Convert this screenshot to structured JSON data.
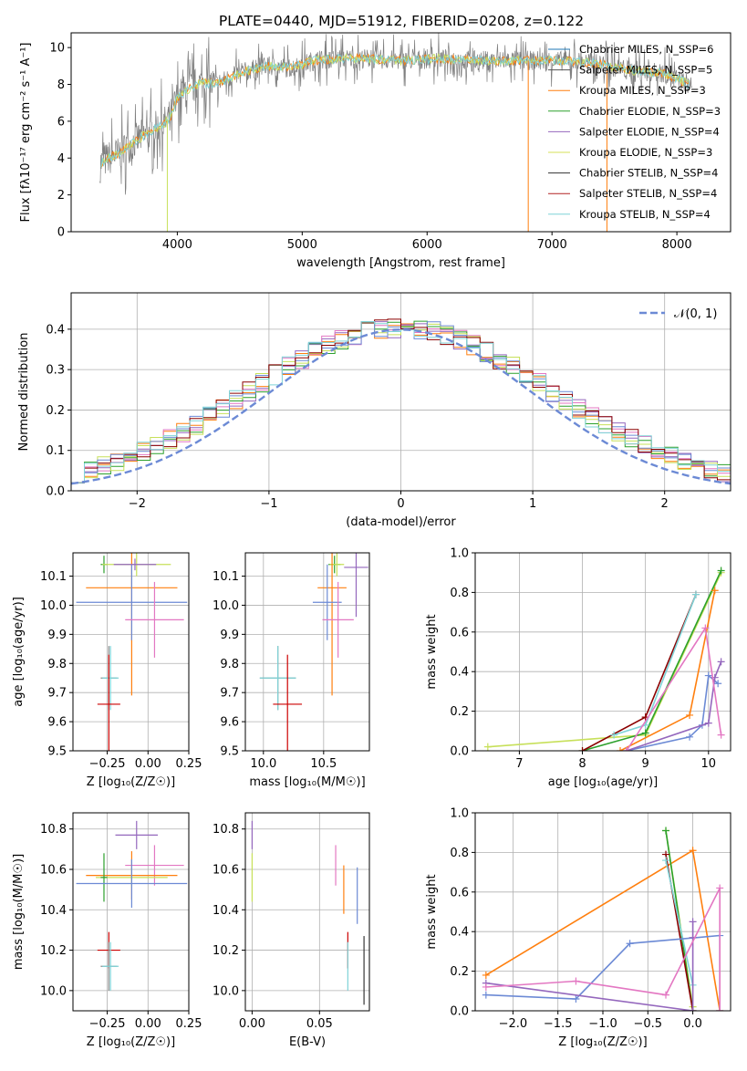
{
  "figure": {
    "title": "PLATE=0440, MJD=51912, FIBERID=0208, z=0.122",
    "series_colors": [
      "#ff7f0e",
      "#6a3d9a",
      "#e377c2",
      "#6c8ad5",
      "#9467bd",
      "#c7e05a",
      "#2ca02c",
      "#8b0000",
      "#7fd3d7",
      "#595959",
      "#da3c28",
      "#d4e157"
    ]
  },
  "chart_data": [
    {
      "id": "spectrum",
      "type": "line",
      "xlabel": "wavelength [Angstrom, rest frame]",
      "ylabel": "Flux [fλ10⁻¹⁷ erg cm⁻² s⁻¹ A⁻¹]",
      "xlim": [
        3150,
        8430
      ],
      "ylim": [
        0,
        10.8
      ],
      "xticks": [
        4000,
        5000,
        6000,
        7000,
        8000
      ],
      "yticks": [
        0,
        2,
        4,
        6,
        8,
        10
      ],
      "grid": false,
      "legend_position": "top-right",
      "legend": [
        {
          "label": "Chabrier MILES, N_SSP=6",
          "color": "#1f77b4"
        },
        {
          "label": "Salpeter MILES, N_SSP=5",
          "color": "#555555"
        },
        {
          "label": "Kroupa MILES, N_SSP=3",
          "color": "#ff7f0e"
        },
        {
          "label": "Chabrier ELODIE, N_SSP=3",
          "color": "#2ca02c"
        },
        {
          "label": "Salpeter ELODIE, N_SSP=4",
          "color": "#9467bd"
        },
        {
          "label": "Kroupa ELODIE, N_SSP=3",
          "color": "#d4e157"
        },
        {
          "label": "Chabrier STELIB, N_SSP=4",
          "color": "#333333"
        },
        {
          "label": "Salpeter STELIB, N_SSP=4",
          "color": "#b22222"
        },
        {
          "label": "Kroupa STELIB, N_SSP=4",
          "color": "#7fd3d7"
        }
      ],
      "data_continuum": {
        "x": [
          3380,
          3450,
          3520,
          3600,
          3700,
          3800,
          3900,
          3950,
          4000,
          4100,
          4200,
          4300,
          4400,
          4500,
          4700,
          4900,
          5100,
          5300,
          5500,
          5800,
          6100,
          6400,
          6700,
          7000,
          7300,
          7600,
          7900,
          8100
        ],
        "y": [
          3.7,
          4.0,
          4.2,
          4.6,
          5.1,
          5.5,
          5.9,
          6.3,
          7.3,
          7.8,
          8.1,
          8.0,
          8.3,
          8.6,
          9.0,
          8.9,
          9.3,
          9.4,
          9.4,
          9.3,
          9.4,
          9.3,
          9.3,
          9.3,
          9.2,
          8.8,
          8.6,
          8.0
        ]
      }
    },
    {
      "id": "residuals",
      "type": "line",
      "xlabel": "(data-model)/error",
      "ylabel": "Normed distribution",
      "xlim": [
        -2.5,
        2.5
      ],
      "ylim": [
        0,
        0.49
      ],
      "xticks": [
        -2,
        -1,
        0,
        1,
        2
      ],
      "yticks": [
        0.0,
        0.1,
        0.2,
        0.3,
        0.4
      ],
      "grid": true,
      "legend_position": "top-right",
      "legend": [
        {
          "label": "𝒩(0, 1)",
          "color": "#6c8ad5"
        }
      ],
      "gaussian": {
        "mean": 0,
        "sigma": 1
      },
      "hist_color": [
        "#ff7f0e",
        "#9467bd",
        "#e377c2",
        "#2ca02c",
        "#c7e05a",
        "#6c8ad5",
        "#8b0000",
        "#7fd3d7"
      ]
    },
    {
      "id": "age-vs-Z",
      "type": "scatter",
      "xlabel": "Z [log₁₀(Z/Z☉)]",
      "ylabel": "age  [log₁₀(age/yr)]",
      "xlim": [
        -0.46,
        0.25
      ],
      "ylim": [
        9.5,
        10.18
      ],
      "xticks": [
        -0.25,
        0.0,
        0.25
      ],
      "yticks": [
        9.5,
        9.6,
        9.7,
        9.8,
        9.9,
        10.0,
        10.1
      ],
      "grid": true,
      "points": [
        {
          "x": -0.27,
          "y": 10.14,
          "xerr": 0.02,
          "yerr": 0.03,
          "color": "#2ca02c"
        },
        {
          "x": -0.07,
          "y": 10.14,
          "xerr": 0.21,
          "yerr": 0.04,
          "color": "#c7e05a"
        },
        {
          "x": -0.1,
          "y": 10.06,
          "xerr": 0.28,
          "yerr": 0.37,
          "color": "#ff7f0e"
        },
        {
          "x": -0.1,
          "y": 10.01,
          "xerr": 0.34,
          "yerr": 0.13,
          "color": "#6c8ad5"
        },
        {
          "x": 0.04,
          "y": 9.95,
          "xerr": 0.18,
          "yerr": 0.13,
          "color": "#e377c2"
        },
        {
          "x": -0.08,
          "y": 10.14,
          "xerr": 0.13,
          "yerr": 0.02,
          "color": "#9467bd"
        },
        {
          "x": -0.24,
          "y": 9.75,
          "xerr": 0.05,
          "yerr": 0.11,
          "color": "#8b8b8b"
        },
        {
          "x": -0.23,
          "y": 9.75,
          "xerr": 0.05,
          "yerr": 0.11,
          "color": "#7fd3d7"
        },
        {
          "x": -0.24,
          "y": 9.66,
          "xerr": 0.07,
          "yerr": 0.17,
          "color": "#cc0000"
        }
      ]
    },
    {
      "id": "age-vs-mass",
      "type": "scatter",
      "xlabel": "mass [log₁₀(M/M☉)]",
      "ylabel": "",
      "xlim": [
        9.85,
        10.88
      ],
      "ylim": [
        9.5,
        10.18
      ],
      "xticks": [
        10.0,
        10.5
      ],
      "yticks": [
        9.5,
        9.6,
        9.7,
        9.8,
        9.9,
        10.0,
        10.1
      ],
      "grid": true,
      "points": [
        {
          "x": 10.59,
          "y": 10.14,
          "xerr": 0.05,
          "yerr": 0.03,
          "color": "#2ca02c"
        },
        {
          "x": 10.61,
          "y": 10.14,
          "xerr": 0.06,
          "yerr": 0.04,
          "color": "#c7e05a"
        },
        {
          "x": 10.57,
          "y": 10.06,
          "xerr": 0.12,
          "yerr": 0.37,
          "color": "#ff7f0e"
        },
        {
          "x": 10.53,
          "y": 10.01,
          "xerr": 0.12,
          "yerr": 0.13,
          "color": "#6c8ad5"
        },
        {
          "x": 10.62,
          "y": 9.95,
          "xerr": 0.13,
          "yerr": 0.13,
          "color": "#e377c2"
        },
        {
          "x": 10.77,
          "y": 10.13,
          "xerr": 0.1,
          "yerr": 0.17,
          "color": "#9467bd"
        },
        {
          "x": 10.12,
          "y": 9.75,
          "xerr": 0.15,
          "yerr": 0.11,
          "color": "#8b8b8b"
        },
        {
          "x": 10.12,
          "y": 9.75,
          "xerr": 0.15,
          "yerr": 0.11,
          "color": "#7fd3d7"
        },
        {
          "x": 10.2,
          "y": 9.66,
          "xerr": 0.12,
          "yerr": 0.17,
          "color": "#cc0000"
        }
      ]
    },
    {
      "id": "weight-vs-age",
      "type": "line",
      "xlabel": "age  [log₁₀(age/yr)]",
      "ylabel": "mass weight",
      "xlim": [
        6.3,
        10.35
      ],
      "ylim": [
        0,
        1.0
      ],
      "xticks": [
        7,
        8,
        9,
        10
      ],
      "yticks": [
        0.0,
        0.2,
        0.4,
        0.6,
        0.8,
        1.0
      ],
      "grid": true,
      "series": [
        {
          "color": "#c7e05a",
          "x": [
            6.5,
            9.0,
            10.2
          ],
          "y": [
            0.02,
            0.08,
            0.9
          ]
        },
        {
          "color": "#2ca02c",
          "x": [
            8.0,
            9.0,
            10.2
          ],
          "y": [
            0.0,
            0.09,
            0.91
          ]
        },
        {
          "color": "#8b0000",
          "x": [
            8.0,
            9.0,
            9.8
          ],
          "y": [
            0.0,
            0.17,
            0.79
          ]
        },
        {
          "color": "#7fd3d7",
          "x": [
            8.5,
            9.0,
            9.8
          ],
          "y": [
            0.08,
            0.13,
            0.79
          ]
        },
        {
          "color": "#ff7f0e",
          "x": [
            8.6,
            9.7,
            10.1
          ],
          "y": [
            0.0,
            0.18,
            0.81
          ]
        },
        {
          "color": "#6c8ad5",
          "x": [
            8.7,
            9.7,
            9.9,
            10.0,
            10.15
          ],
          "y": [
            0.0,
            0.07,
            0.13,
            0.38,
            0.34
          ]
        },
        {
          "color": "#9467bd",
          "x": [
            8.7,
            10.0,
            10.1,
            10.2
          ],
          "y": [
            0.0,
            0.14,
            0.37,
            0.45
          ]
        },
        {
          "color": "#e377c2",
          "x": [
            8.7,
            9.95,
            10.2
          ],
          "y": [
            0.0,
            0.62,
            0.08
          ]
        }
      ]
    },
    {
      "id": "mass-vs-Z",
      "type": "scatter",
      "xlabel": "Z [log₁₀(Z/Z☉)]",
      "ylabel": "mass [log₁₀(M/M☉)]",
      "xlim": [
        -0.46,
        0.25
      ],
      "ylim": [
        9.9,
        10.88
      ],
      "xticks": [
        -0.25,
        0.0,
        0.25
      ],
      "yticks": [
        10.0,
        10.2,
        10.4,
        10.6,
        10.8
      ],
      "grid": true,
      "points": [
        {
          "x": -0.07,
          "y": 10.77,
          "xerr": 0.13,
          "yerr": 0.07,
          "color": "#9467bd"
        },
        {
          "x": 0.04,
          "y": 10.62,
          "xerr": 0.18,
          "yerr": 0.1,
          "color": "#e377c2"
        },
        {
          "x": -0.1,
          "y": 10.57,
          "xerr": 0.28,
          "yerr": 0.12,
          "color": "#ff7f0e"
        },
        {
          "x": -0.1,
          "y": 10.56,
          "xerr": 0.22,
          "yerr": 0.05,
          "color": "#c7e05a"
        },
        {
          "x": -0.27,
          "y": 10.56,
          "xerr": 0.02,
          "yerr": 0.12,
          "color": "#2ca02c"
        },
        {
          "x": -0.1,
          "y": 10.53,
          "xerr": 0.34,
          "yerr": 0.12,
          "color": "#6c8ad5"
        },
        {
          "x": -0.24,
          "y": 10.2,
          "xerr": 0.07,
          "yerr": 0.09,
          "color": "#cc0000"
        },
        {
          "x": -0.24,
          "y": 10.12,
          "xerr": 0.05,
          "yerr": 0.12,
          "color": "#8b8b8b"
        },
        {
          "x": -0.23,
          "y": 10.12,
          "xerr": 0.05,
          "yerr": 0.12,
          "color": "#7fd3d7"
        }
      ]
    },
    {
      "id": "mass-vs-EBV",
      "type": "scatter",
      "xlabel": "E(B-V)",
      "ylabel": "",
      "xlim": [
        -0.005,
        0.087
      ],
      "ylim": [
        9.9,
        10.88
      ],
      "xticks": [
        0.0,
        0.05
      ],
      "yticks": [
        10.0,
        10.2,
        10.4,
        10.6,
        10.8
      ],
      "grid": true,
      "points": [
        {
          "x": 0.0,
          "y": 10.77,
          "xerr": 0,
          "yerr": 0.07,
          "color": "#9467bd"
        },
        {
          "x": 0.0,
          "y": 10.56,
          "xerr": 0,
          "yerr": 0.12,
          "color": "#c7e05a"
        },
        {
          "x": 0.062,
          "y": 10.62,
          "xerr": 0,
          "yerr": 0.1,
          "color": "#e377c2"
        },
        {
          "x": 0.068,
          "y": 10.5,
          "xerr": 0,
          "yerr": 0.12,
          "color": "#ff7f0e"
        },
        {
          "x": 0.078,
          "y": 10.47,
          "xerr": 0,
          "yerr": 0.14,
          "color": "#6c8ad5"
        },
        {
          "x": 0.071,
          "y": 10.2,
          "xerr": 0,
          "yerr": 0.09,
          "color": "#cc0000"
        },
        {
          "x": 0.071,
          "y": 10.12,
          "xerr": 0,
          "yerr": 0.12,
          "color": "#7fd3d7"
        },
        {
          "x": 0.083,
          "y": 10.1,
          "xerr": 0,
          "yerr": 0.17,
          "color": "#333333"
        }
      ]
    },
    {
      "id": "weight-vs-Z",
      "type": "line",
      "xlabel": "Z [log₁₀(Z/Z☉)]",
      "ylabel": "mass weight",
      "xlim": [
        -2.42,
        0.42
      ],
      "ylim": [
        0,
        1.0
      ],
      "xticks": [
        -2.0,
        -1.5,
        -1.0,
        -0.5,
        0.0
      ],
      "yticks": [
        0.0,
        0.2,
        0.4,
        0.6,
        0.8,
        1.0
      ],
      "grid": true,
      "series": [
        {
          "color": "#ff7f0e",
          "x": [
            -2.3,
            0.0,
            0.3
          ],
          "y": [
            0.18,
            0.81,
            0.0
          ]
        },
        {
          "color": "#c7e05a",
          "x": [
            -0.3,
            0.0
          ],
          "y": [
            0.91,
            0.02
          ]
        },
        {
          "color": "#2ca02c",
          "x": [
            -0.3,
            0.0
          ],
          "y": [
            0.91,
            0.0
          ]
        },
        {
          "color": "#8b0000",
          "x": [
            -0.3,
            0.0
          ],
          "y": [
            0.79,
            0.0
          ]
        },
        {
          "color": "#7fd3d7",
          "x": [
            -0.3,
            0.0
          ],
          "y": [
            0.76,
            0.13
          ]
        },
        {
          "color": "#6c8ad5",
          "x": [
            -2.3,
            -1.3,
            -0.7,
            0.3,
            0.3
          ],
          "y": [
            0.08,
            0.06,
            0.34,
            0.38,
            0.0
          ]
        },
        {
          "color": "#9467bd",
          "x": [
            -2.3,
            0.0,
            0.0,
            0.0
          ],
          "y": [
            0.14,
            0.0,
            0.37,
            0.45
          ]
        },
        {
          "color": "#e377c2",
          "x": [
            -2.3,
            -1.3,
            -0.3,
            0.3,
            0.3
          ],
          "y": [
            0.12,
            0.15,
            0.08,
            0.62,
            0.0
          ]
        }
      ]
    }
  ]
}
